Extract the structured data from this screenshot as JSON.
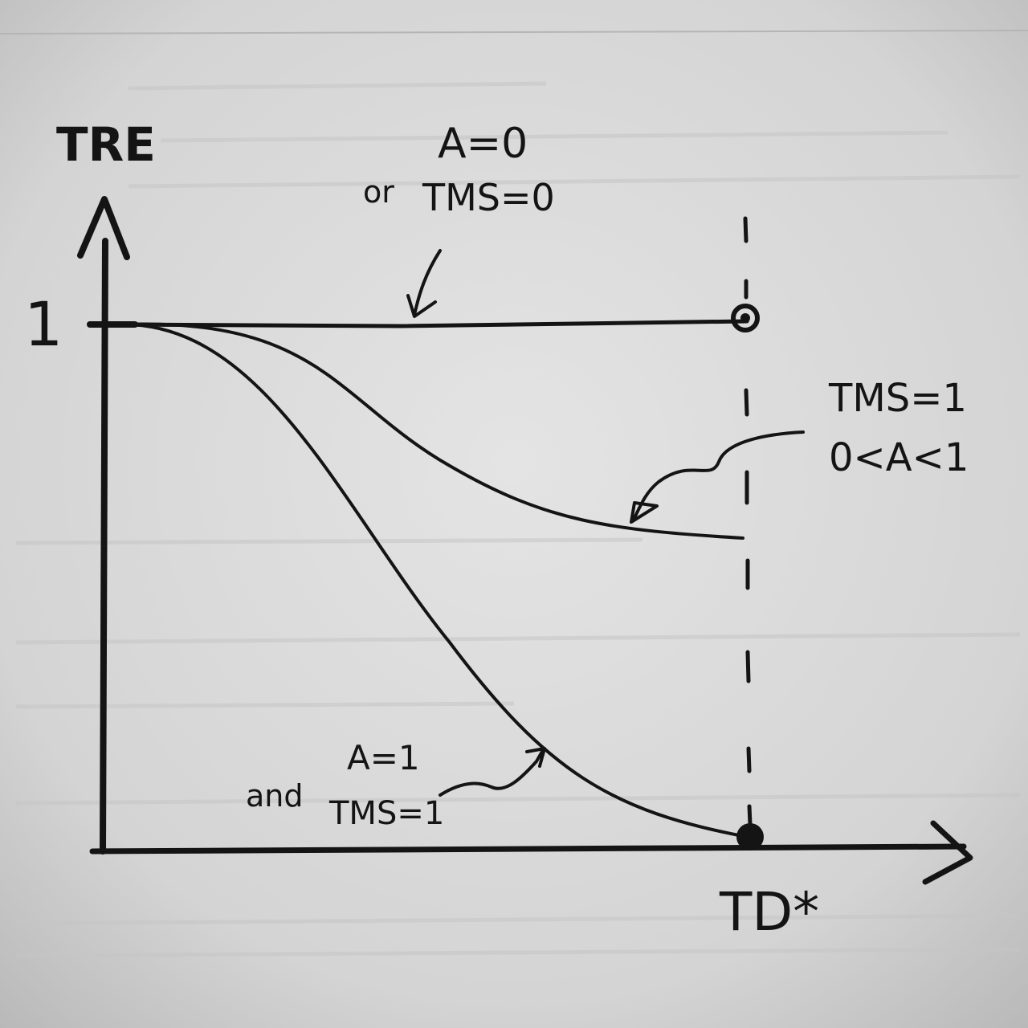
{
  "diagram": {
    "y_axis_label": "TRE",
    "x_axis_label": "TD*",
    "y_tick_label": "1",
    "labels": {
      "flat_line": {
        "line1": "A=0",
        "line2_prefix": "or",
        "line2": "TMS=0"
      },
      "middle_curve": {
        "line1": "TMS=1",
        "line2": "0<A<1"
      },
      "bottom_curve": {
        "line1": "A=1",
        "line2_prefix": "and",
        "line2": "TMS=1"
      }
    }
  },
  "colors": {
    "paper": "#d6d6d6",
    "ink": "#141414"
  }
}
